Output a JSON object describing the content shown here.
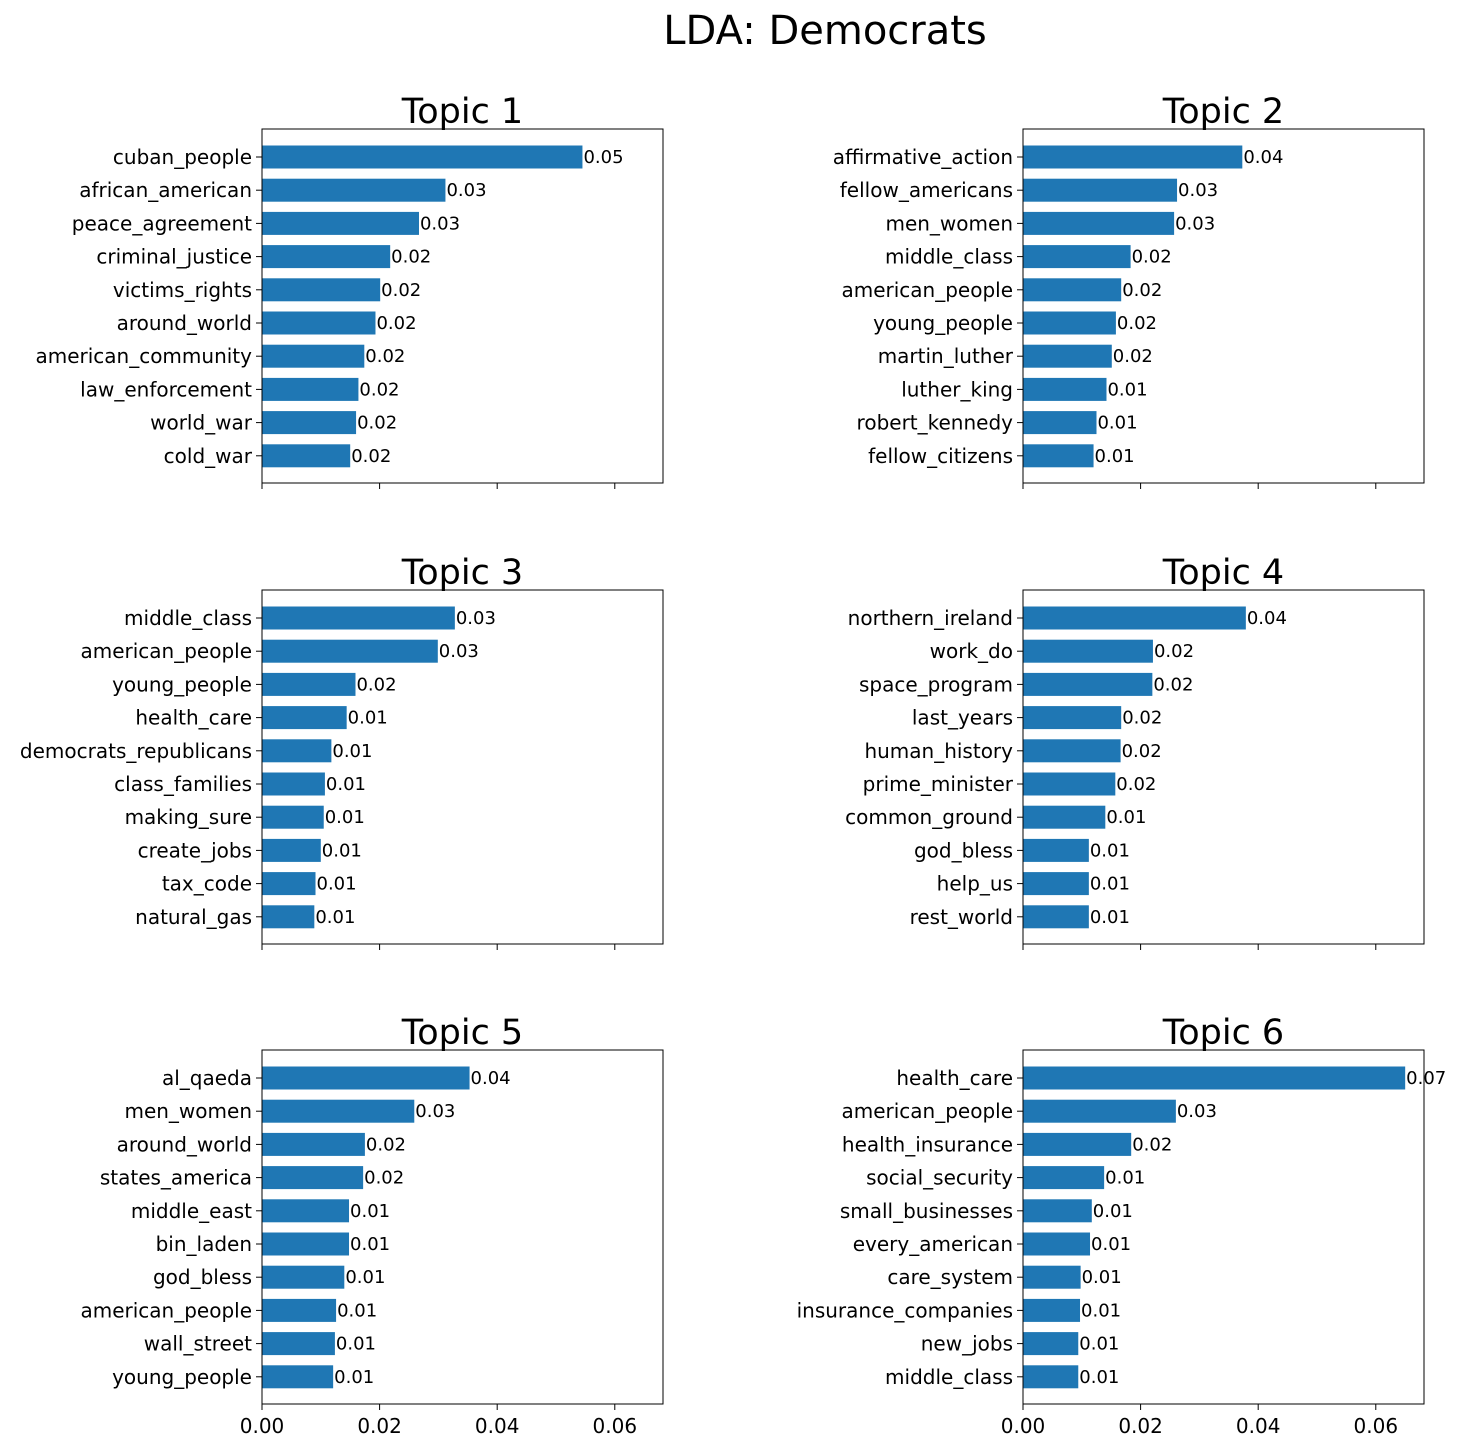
{
  "figure": {
    "suptitle": "LDA: Democrats",
    "bar_color": "#1f77b4"
  },
  "chart_data": [
    {
      "type": "bar",
      "orientation": "horizontal",
      "title": "Topic 1",
      "categories": [
        "cuban_people",
        "african_american",
        "peace_agreement",
        "criminal_justice",
        "victims_rights",
        "around_world",
        "american_community",
        "law_enforcement",
        "world_war",
        "cold_war"
      ],
      "values": [
        0.0545,
        0.0312,
        0.0267,
        0.0218,
        0.0201,
        0.0193,
        0.0174,
        0.0164,
        0.016,
        0.015
      ],
      "value_labels": [
        "0.05",
        "0.03",
        "0.03",
        "0.02",
        "0.02",
        "0.02",
        "0.02",
        "0.02",
        "0.02",
        "0.02"
      ],
      "xlim": [
        0,
        0.0682
      ],
      "xticks": [
        0,
        0.02,
        0.04,
        0.06
      ],
      "xtick_labels": [],
      "grid": false
    },
    {
      "type": "bar",
      "orientation": "horizontal",
      "title": "Topic 2",
      "categories": [
        "affirmative_action",
        "fellow_americans",
        "men_women",
        "middle_class",
        "american_people",
        "young_people",
        "martin_luther",
        "luther_king",
        "robert_kennedy",
        "fellow_citizens"
      ],
      "values": [
        0.0373,
        0.0262,
        0.0257,
        0.0183,
        0.0167,
        0.0158,
        0.0151,
        0.0142,
        0.0125,
        0.012
      ],
      "value_labels": [
        "0.04",
        "0.03",
        "0.03",
        "0.02",
        "0.02",
        "0.02",
        "0.02",
        "0.01",
        "0.01",
        "0.01"
      ],
      "xlim": [
        0,
        0.0682
      ],
      "xticks": [
        0,
        0.02,
        0.04,
        0.06
      ],
      "xtick_labels": [],
      "grid": false
    },
    {
      "type": "bar",
      "orientation": "horizontal",
      "title": "Topic 3",
      "categories": [
        "middle_class",
        "american_people",
        "young_people",
        "health_care",
        "democrats_republicans",
        "class_families",
        "making_sure",
        "create_jobs",
        "tax_code",
        "natural_gas"
      ],
      "values": [
        0.0328,
        0.0299,
        0.0159,
        0.0144,
        0.0118,
        0.0107,
        0.0105,
        0.01,
        0.0091,
        0.0089
      ],
      "value_labels": [
        "0.03",
        "0.03",
        "0.02",
        "0.01",
        "0.01",
        "0.01",
        "0.01",
        "0.01",
        "0.01",
        "0.01"
      ],
      "xlim": [
        0,
        0.0682
      ],
      "xticks": [
        0,
        0.02,
        0.04,
        0.06
      ],
      "xtick_labels": [],
      "grid": false
    },
    {
      "type": "bar",
      "orientation": "horizontal",
      "title": "Topic 4",
      "categories": [
        "northern_ireland",
        "work_do",
        "space_program",
        "last_years",
        "human_history",
        "prime_minister",
        "common_ground",
        "god_bless",
        "help_us",
        "rest_world"
      ],
      "values": [
        0.0379,
        0.0221,
        0.022,
        0.0167,
        0.0166,
        0.0157,
        0.014,
        0.0112,
        0.0112,
        0.0112
      ],
      "value_labels": [
        "0.04",
        "0.02",
        "0.02",
        "0.02",
        "0.02",
        "0.02",
        "0.01",
        "0.01",
        "0.01",
        "0.01"
      ],
      "xlim": [
        0,
        0.0682
      ],
      "xticks": [
        0,
        0.02,
        0.04,
        0.06
      ],
      "xtick_labels": [],
      "grid": false
    },
    {
      "type": "bar",
      "orientation": "horizontal",
      "title": "Topic 5",
      "categories": [
        "al_qaeda",
        "men_women",
        "around_world",
        "states_america",
        "middle_east",
        "bin_laden",
        "god_bless",
        "american_people",
        "wall_street",
        "young_people"
      ],
      "values": [
        0.0353,
        0.0259,
        0.0175,
        0.0172,
        0.0148,
        0.0148,
        0.014,
        0.0126,
        0.0124,
        0.0121
      ],
      "value_labels": [
        "0.04",
        "0.03",
        "0.02",
        "0.02",
        "0.01",
        "0.01",
        "0.01",
        "0.01",
        "0.01",
        "0.01"
      ],
      "xlim": [
        0,
        0.0682
      ],
      "xticks": [
        0,
        0.02,
        0.04,
        0.06
      ],
      "xtick_labels": [
        "0.00",
        "0.02",
        "0.04",
        "0.06"
      ],
      "grid": false
    },
    {
      "type": "bar",
      "orientation": "horizontal",
      "title": "Topic 6",
      "categories": [
        "health_care",
        "american_people",
        "health_insurance",
        "social_security",
        "small_businesses",
        "every_american",
        "care_system",
        "insurance_companies",
        "new_jobs",
        "middle_class"
      ],
      "values": [
        0.065,
        0.026,
        0.0184,
        0.0138,
        0.0117,
        0.0114,
        0.0098,
        0.0097,
        0.0094,
        0.0094
      ],
      "value_labels": [
        "0.07",
        "0.03",
        "0.02",
        "0.01",
        "0.01",
        "0.01",
        "0.01",
        "0.01",
        "0.01",
        "0.01"
      ],
      "xlim": [
        0,
        0.0682
      ],
      "xticks": [
        0,
        0.02,
        0.04,
        0.06
      ],
      "xtick_labels": [
        "0.00",
        "0.02",
        "0.04",
        "0.06"
      ],
      "grid": false
    }
  ]
}
